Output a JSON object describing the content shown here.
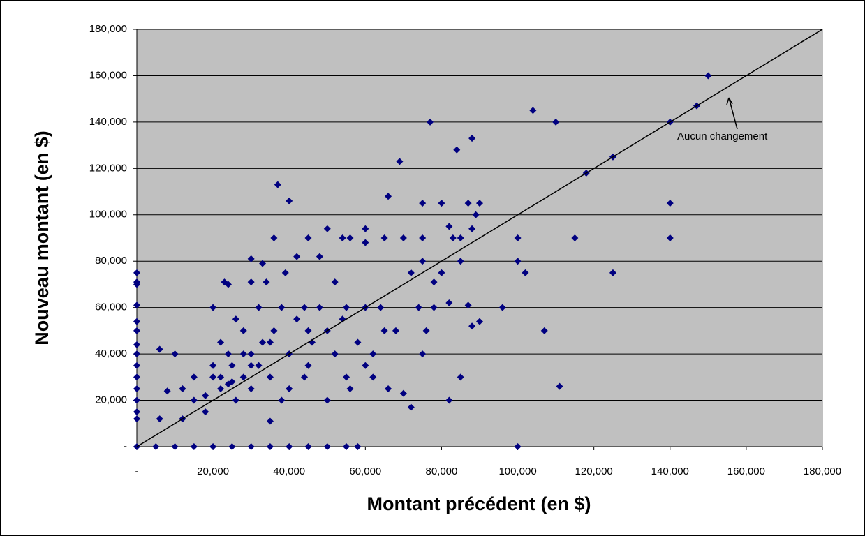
{
  "chart_data": {
    "type": "scatter",
    "x_label": "Montant précédent (en $)",
    "y_label": "Nouveau montant (en $)",
    "color": "#000080",
    "plot_background": "#c0c0c0",
    "grid": true,
    "xlim": [
      0,
      180000
    ],
    "ylim": [
      0,
      180000
    ],
    "xticks": [
      {
        "value": 0,
        "label": "-"
      },
      {
        "value": 20000,
        "label": "20,000"
      },
      {
        "value": 40000,
        "label": "40,000"
      },
      {
        "value": 60000,
        "label": "60,000"
      },
      {
        "value": 80000,
        "label": "80,000"
      },
      {
        "value": 100000,
        "label": "100,000"
      },
      {
        "value": 120000,
        "label": "120,000"
      },
      {
        "value": 140000,
        "label": "140,000"
      },
      {
        "value": 160000,
        "label": "160,000"
      },
      {
        "value": 180000,
        "label": "180,000"
      }
    ],
    "yticks": [
      {
        "value": 0,
        "label": "-"
      },
      {
        "value": 20000,
        "label": "20,000"
      },
      {
        "value": 40000,
        "label": "40,000"
      },
      {
        "value": 60000,
        "label": "60,000"
      },
      {
        "value": 80000,
        "label": "80,000"
      },
      {
        "value": 100000,
        "label": "100,000"
      },
      {
        "value": 120000,
        "label": "120,000"
      },
      {
        "value": 140000,
        "label": "140,000"
      },
      {
        "value": 160000,
        "label": "160,000"
      },
      {
        "value": 180000,
        "label": "180,000"
      }
    ],
    "reference_line": {
      "label": "Aucun changement",
      "x": [
        0,
        180000
      ],
      "y": [
        0,
        180000
      ]
    },
    "x": [
      150000,
      147000,
      140000,
      125000,
      118000,
      140000,
      140000,
      125000,
      115000,
      110000,
      104000,
      100000,
      100000,
      102000,
      107000,
      111000,
      100000,
      96000,
      77000,
      88000,
      84000,
      69000,
      66000,
      75000,
      80000,
      87000,
      90000,
      89000,
      88000,
      85000,
      82000,
      85000,
      80000,
      78000,
      75000,
      75000,
      72000,
      70000,
      65000,
      60000,
      60000,
      56000,
      54000,
      50000,
      45000,
      40000,
      37000,
      36000,
      42000,
      39000,
      33000,
      30000,
      23000,
      24000,
      0,
      0,
      0,
      0,
      0,
      0,
      0,
      0,
      0,
      0,
      0,
      0,
      0,
      0,
      0,
      5000,
      10000,
      15000,
      20000,
      25000,
      30000,
      35000,
      40000,
      45000,
      50000,
      55000,
      58000,
      6000,
      10000,
      6000,
      8000,
      12000,
      15000,
      18000,
      20000,
      22000,
      20000,
      25000,
      25000,
      28000,
      30000,
      30000,
      32000,
      35000,
      35000,
      35000,
      38000,
      40000,
      40000,
      42000,
      45000,
      45000,
      48000,
      50000,
      50000,
      52000,
      55000,
      55000,
      58000,
      60000,
      60000,
      62000,
      65000,
      66000,
      68000,
      70000,
      72000,
      74000,
      75000,
      76000,
      78000,
      82000,
      82000,
      85000,
      87000,
      88000,
      90000,
      83000,
      48000,
      52000,
      28000,
      22000,
      26000,
      32000,
      15000,
      12000,
      18000,
      24000,
      36000,
      44000,
      38000,
      46000,
      54000,
      56000,
      62000,
      64000,
      30000,
      34000,
      44000,
      26000,
      20000,
      22000,
      24000,
      28000,
      30000,
      33000
    ],
    "y": [
      160000,
      147000,
      140000,
      125000,
      118000,
      105000,
      90000,
      75000,
      90000,
      140000,
      145000,
      90000,
      80000,
      75000,
      50000,
      26000,
      0,
      60000,
      140000,
      133000,
      128000,
      123000,
      108000,
      105000,
      105000,
      105000,
      105000,
      100000,
      94000,
      90000,
      95000,
      80000,
      75000,
      71000,
      90000,
      80000,
      75000,
      90000,
      90000,
      94000,
      88000,
      90000,
      90000,
      94000,
      90000,
      106000,
      113000,
      90000,
      82000,
      75000,
      79000,
      81000,
      71000,
      70000,
      75000,
      71000,
      70000,
      61000,
      54000,
      50000,
      44000,
      40000,
      35000,
      30000,
      25000,
      20000,
      15000,
      12000,
      0,
      0,
      0,
      0,
      0,
      0,
      0,
      0,
      0,
      0,
      0,
      0,
      0,
      42000,
      40000,
      12000,
      24000,
      12000,
      20000,
      22000,
      60000,
      45000,
      30000,
      28000,
      35000,
      50000,
      40000,
      25000,
      60000,
      45000,
      30000,
      11000,
      60000,
      40000,
      25000,
      55000,
      50000,
      35000,
      60000,
      50000,
      20000,
      40000,
      60000,
      30000,
      45000,
      60000,
      35000,
      40000,
      50000,
      25000,
      50000,
      23000,
      17000,
      60000,
      40000,
      50000,
      60000,
      62000,
      20000,
      30000,
      61000,
      52000,
      54000,
      90000,
      82000,
      71000,
      30000,
      25000,
      20000,
      35000,
      30000,
      25000,
      15000,
      40000,
      50000,
      30000,
      20000,
      45000,
      55000,
      25000,
      30000,
      60000,
      71000,
      71000,
      60000,
      55000,
      35000,
      30000,
      27000,
      40000,
      35000,
      45000
    ]
  }
}
